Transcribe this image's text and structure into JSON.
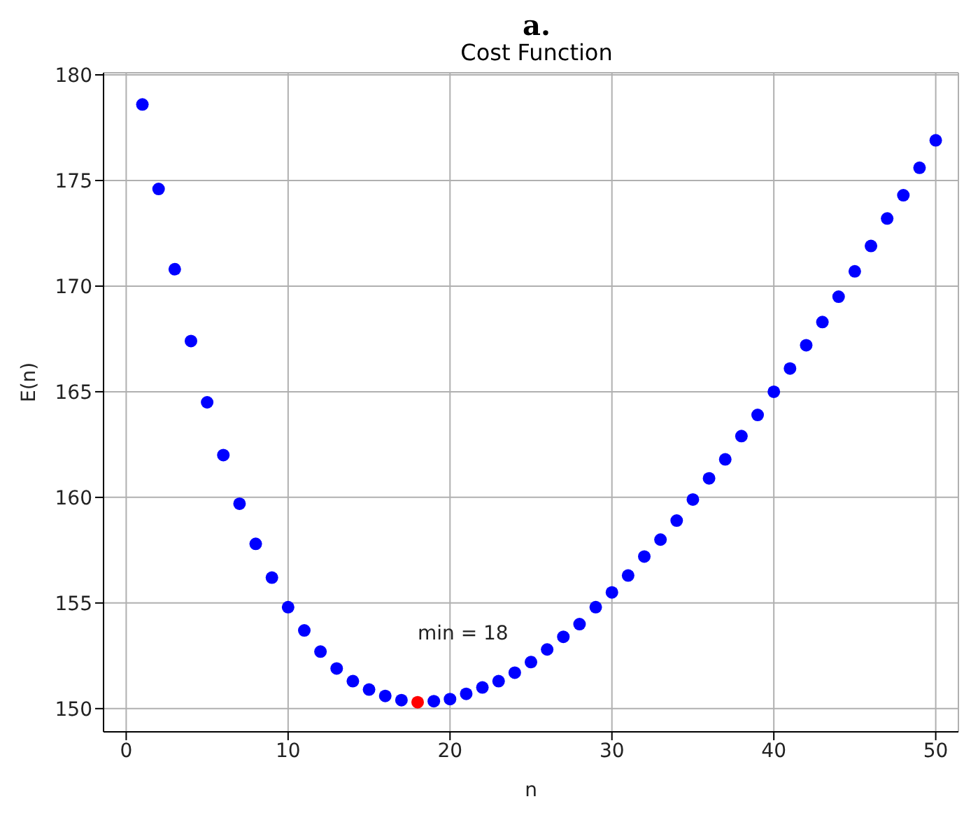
{
  "chart_data": {
    "type": "scatter",
    "title": "Cost Function",
    "subtitle": "a.",
    "xlabel": "n",
    "ylabel": "E(n)",
    "x": [
      1,
      2,
      3,
      4,
      5,
      6,
      7,
      8,
      9,
      10,
      11,
      12,
      13,
      14,
      15,
      16,
      17,
      18,
      19,
      20,
      21,
      22,
      23,
      24,
      25,
      26,
      27,
      28,
      29,
      30,
      31,
      32,
      33,
      34,
      35,
      36,
      37,
      38,
      39,
      40,
      41,
      42,
      43,
      44,
      45,
      46,
      47,
      48,
      49,
      50
    ],
    "series": [
      {
        "color": "#0000ff",
        "values": [
          178.6,
          174.6,
          170.8,
          167.4,
          164.5,
          162.0,
          159.7,
          157.8,
          156.2,
          154.8,
          153.7,
          152.7,
          151.9,
          151.3,
          150.9,
          150.6,
          150.4,
          null,
          150.35,
          150.45,
          150.7,
          151.0,
          151.3,
          151.7,
          152.2,
          152.8,
          153.4,
          154.0,
          154.8,
          155.5,
          156.3,
          157.2,
          158.0,
          158.9,
          159.9,
          160.9,
          161.8,
          162.9,
          163.9,
          165.0,
          166.1,
          167.2,
          168.3,
          169.5,
          170.7,
          171.9,
          173.2,
          174.3,
          175.6,
          176.9
        ]
      },
      {
        "color": "#ff0000",
        "x": [
          18
        ],
        "values": [
          150.3
        ]
      }
    ],
    "annotations": [
      {
        "text": "min = 18",
        "x": 18,
        "y": 150.3
      }
    ],
    "xlim": [
      -1.4,
      51.4
    ],
    "xticks": [
      0,
      10,
      20,
      30,
      40,
      50
    ],
    "ylim": [
      148.9,
      180.1
    ],
    "yticks": [
      150,
      155,
      160,
      165,
      170,
      175,
      180
    ],
    "grid": true,
    "marker": "circle"
  }
}
